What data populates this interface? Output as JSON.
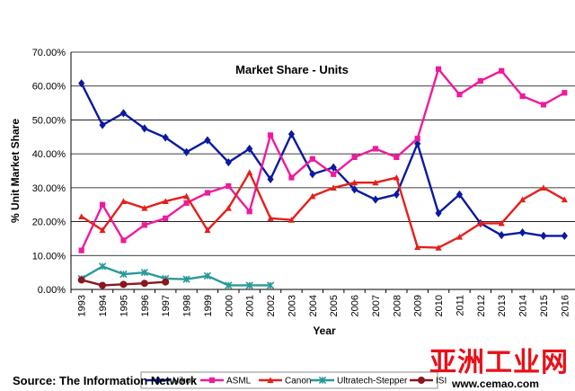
{
  "chart_data": {
    "type": "line",
    "title": "Market Share - Units",
    "xlabel": "Year",
    "ylabel": "% Unit Market Share",
    "ylim": [
      0,
      70
    ],
    "yticks": [
      "0.00%",
      "10.00%",
      "20.00%",
      "30.00%",
      "40.00%",
      "50.00%",
      "60.00%",
      "70.00%"
    ],
    "grid": "horizontal",
    "legend_position": "bottom",
    "categories": [
      "1993",
      "1994",
      "1995",
      "1996",
      "1997",
      "1998",
      "1999",
      "2000",
      "2001",
      "2002",
      "2003",
      "2004",
      "2005",
      "2006",
      "2007",
      "2008",
      "2009",
      "2010",
      "2011",
      "2012",
      "2013",
      "2014",
      "2015",
      "2016"
    ],
    "series": [
      {
        "name": "Nikon",
        "color": "#0a1aa0",
        "marker": "diamond",
        "values": [
          60.8,
          48.5,
          52.0,
          47.5,
          44.8,
          40.5,
          44.0,
          37.5,
          41.5,
          32.5,
          45.8,
          34.0,
          36.0,
          29.5,
          26.5,
          28.0,
          43.0,
          22.5,
          28.0,
          19.5,
          16.0,
          16.8,
          15.8,
          15.8
        ]
      },
      {
        "name": "ASML",
        "color": "#ee1b9c",
        "marker": "square",
        "values": [
          11.5,
          25.0,
          14.5,
          19.0,
          21.0,
          25.5,
          28.5,
          30.5,
          23.0,
          45.5,
          33.0,
          38.5,
          34.0,
          39.0,
          41.5,
          39.0,
          44.5,
          65.0,
          57.5,
          61.5,
          64.5,
          57.0,
          54.5,
          58.0
        ]
      },
      {
        "name": "Canon",
        "color": "#e4201b",
        "marker": "triangle",
        "values": [
          21.5,
          17.5,
          26.0,
          24.0,
          26.0,
          27.5,
          17.5,
          24.0,
          34.5,
          21.0,
          20.5,
          27.5,
          30.0,
          31.5,
          31.5,
          33.0,
          12.5,
          12.3,
          15.5,
          19.5,
          19.5,
          26.5,
          30.0,
          26.5
        ]
      },
      {
        "name": "Ultratech-Stepper",
        "color": "#2a9a98",
        "marker": "star",
        "values": [
          3.2,
          6.8,
          4.5,
          5.0,
          3.2,
          3.0,
          4.0,
          1.2,
          1.2,
          1.2,
          null,
          null,
          null,
          null,
          null,
          null,
          null,
          null,
          null,
          null,
          null,
          null,
          null,
          null
        ]
      },
      {
        "name": "ISI",
        "color": "#8a1620",
        "marker": "circle",
        "values": [
          2.8,
          1.2,
          1.5,
          1.8,
          2.2,
          null,
          null,
          null,
          null,
          null,
          null,
          null,
          null,
          null,
          null,
          null,
          null,
          null,
          null,
          null,
          null,
          null,
          null,
          null
        ]
      }
    ]
  },
  "footer": {
    "source": "Source: The Information Network"
  },
  "watermark": {
    "cn": "亚洲工业网",
    "url": "www.cemao.com"
  }
}
